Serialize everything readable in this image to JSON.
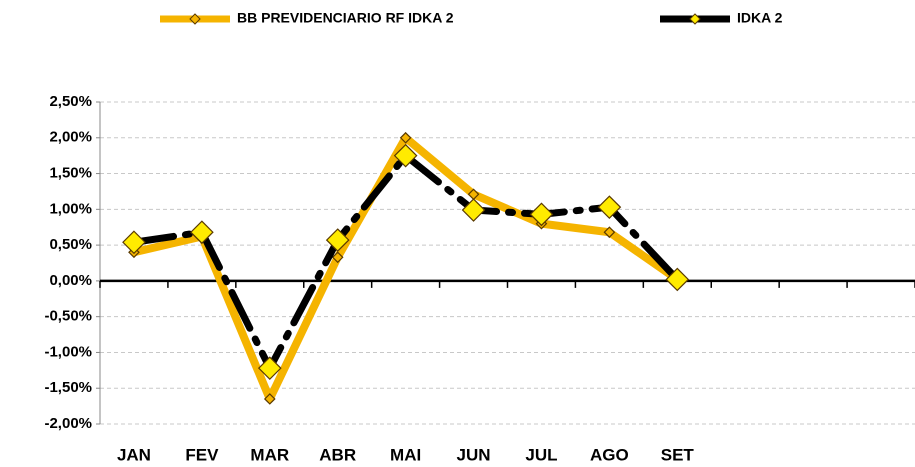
{
  "chart_data": {
    "type": "line",
    "categories": [
      "JAN",
      "FEV",
      "MAR",
      "ABR",
      "MAI",
      "JUN",
      "JUL",
      "AGO",
      "SET",
      null,
      null,
      null
    ],
    "series": [
      {
        "name": "BB PREVIDENCIARIO RF IDKA 2",
        "color": "#F5B400",
        "marker_color": "#F5B400",
        "line_style": "solid",
        "marker_size": "small",
        "values": [
          0.4,
          0.62,
          -1.65,
          0.33,
          2.0,
          1.21,
          0.8,
          0.68,
          0.02,
          null,
          null,
          null
        ]
      },
      {
        "name": "IDKA 2",
        "color": "#000000",
        "marker_color": "#FFEB00",
        "line_style": "dashed",
        "marker_size": "large",
        "values": [
          0.54,
          0.68,
          -1.22,
          0.57,
          1.75,
          0.99,
          0.93,
          1.03,
          0.02,
          null,
          null,
          null
        ]
      }
    ],
    "ylim": [
      -2.0,
      2.5
    ],
    "yticks": [
      {
        "value": -2.0,
        "label": "-2,00%"
      },
      {
        "value": -1.5,
        "label": "-1,50%"
      },
      {
        "value": -1.0,
        "label": "-1,00%"
      },
      {
        "value": -0.5,
        "label": "-0,50%"
      },
      {
        "value": 0,
        "label": "0,00%"
      },
      {
        "value": 0.5,
        "label": "0,50%"
      },
      {
        "value": 1.0,
        "label": "1,00%"
      },
      {
        "value": 1.5,
        "label": "1,50%"
      },
      {
        "value": 2.0,
        "label": "2,00%"
      },
      {
        "value": 2.5,
        "label": "2,50%"
      }
    ],
    "grid": true,
    "legend": "top"
  }
}
